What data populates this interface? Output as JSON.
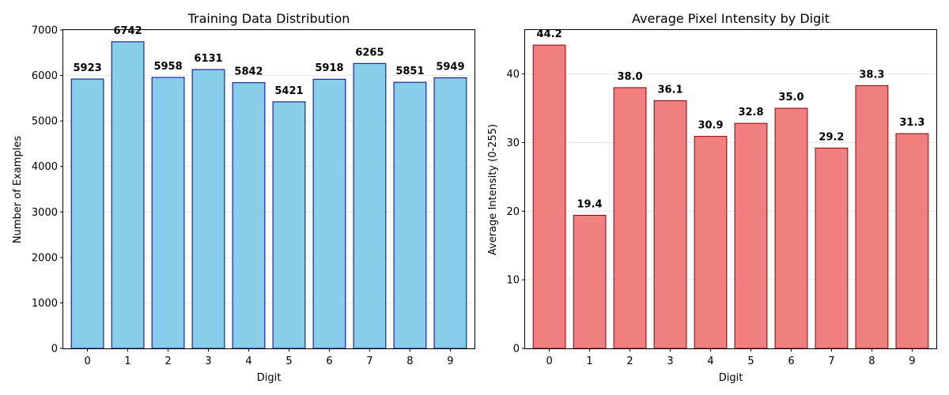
{
  "chart_data": [
    {
      "type": "bar",
      "title": "Training Data Distribution",
      "xlabel": "Digit",
      "ylabel": "Number of Examples",
      "categories": [
        "0",
        "1",
        "2",
        "3",
        "4",
        "5",
        "6",
        "7",
        "8",
        "9"
      ],
      "values": [
        5923,
        6742,
        5958,
        6131,
        5842,
        5421,
        5918,
        6265,
        5851,
        5949
      ],
      "value_labels": [
        "5923",
        "6742",
        "5958",
        "6131",
        "5842",
        "5421",
        "5918",
        "6265",
        "5851",
        "5949"
      ],
      "ylim": [
        0,
        7000
      ],
      "yticks": [
        0,
        1000,
        2000,
        3000,
        4000,
        5000,
        6000,
        7000
      ],
      "ytick_labels": [
        "0",
        "1000",
        "2000",
        "3000",
        "4000",
        "5000",
        "6000",
        "7000"
      ],
      "grid": true,
      "bar_color": "#87ceeb",
      "edge_color": "#00008b"
    },
    {
      "type": "bar",
      "title": "Average Pixel Intensity by Digit",
      "xlabel": "Digit",
      "ylabel": "Average Intensity (0-255)",
      "categories": [
        "0",
        "1",
        "2",
        "3",
        "4",
        "5",
        "6",
        "7",
        "8",
        "9"
      ],
      "values": [
        44.2,
        19.4,
        38.0,
        36.1,
        30.9,
        32.8,
        35.0,
        29.2,
        38.3,
        31.3
      ],
      "value_labels": [
        "44.2",
        "19.4",
        "38.0",
        "36.1",
        "30.9",
        "32.8",
        "35.0",
        "29.2",
        "38.3",
        "31.3"
      ],
      "ylim": [
        0,
        46.4
      ],
      "yticks": [
        0,
        10,
        20,
        30,
        40
      ],
      "ytick_labels": [
        "0",
        "10",
        "20",
        "30",
        "40"
      ],
      "grid": true,
      "bar_color": "#f08080",
      "edge_color": "#8b0000"
    }
  ]
}
